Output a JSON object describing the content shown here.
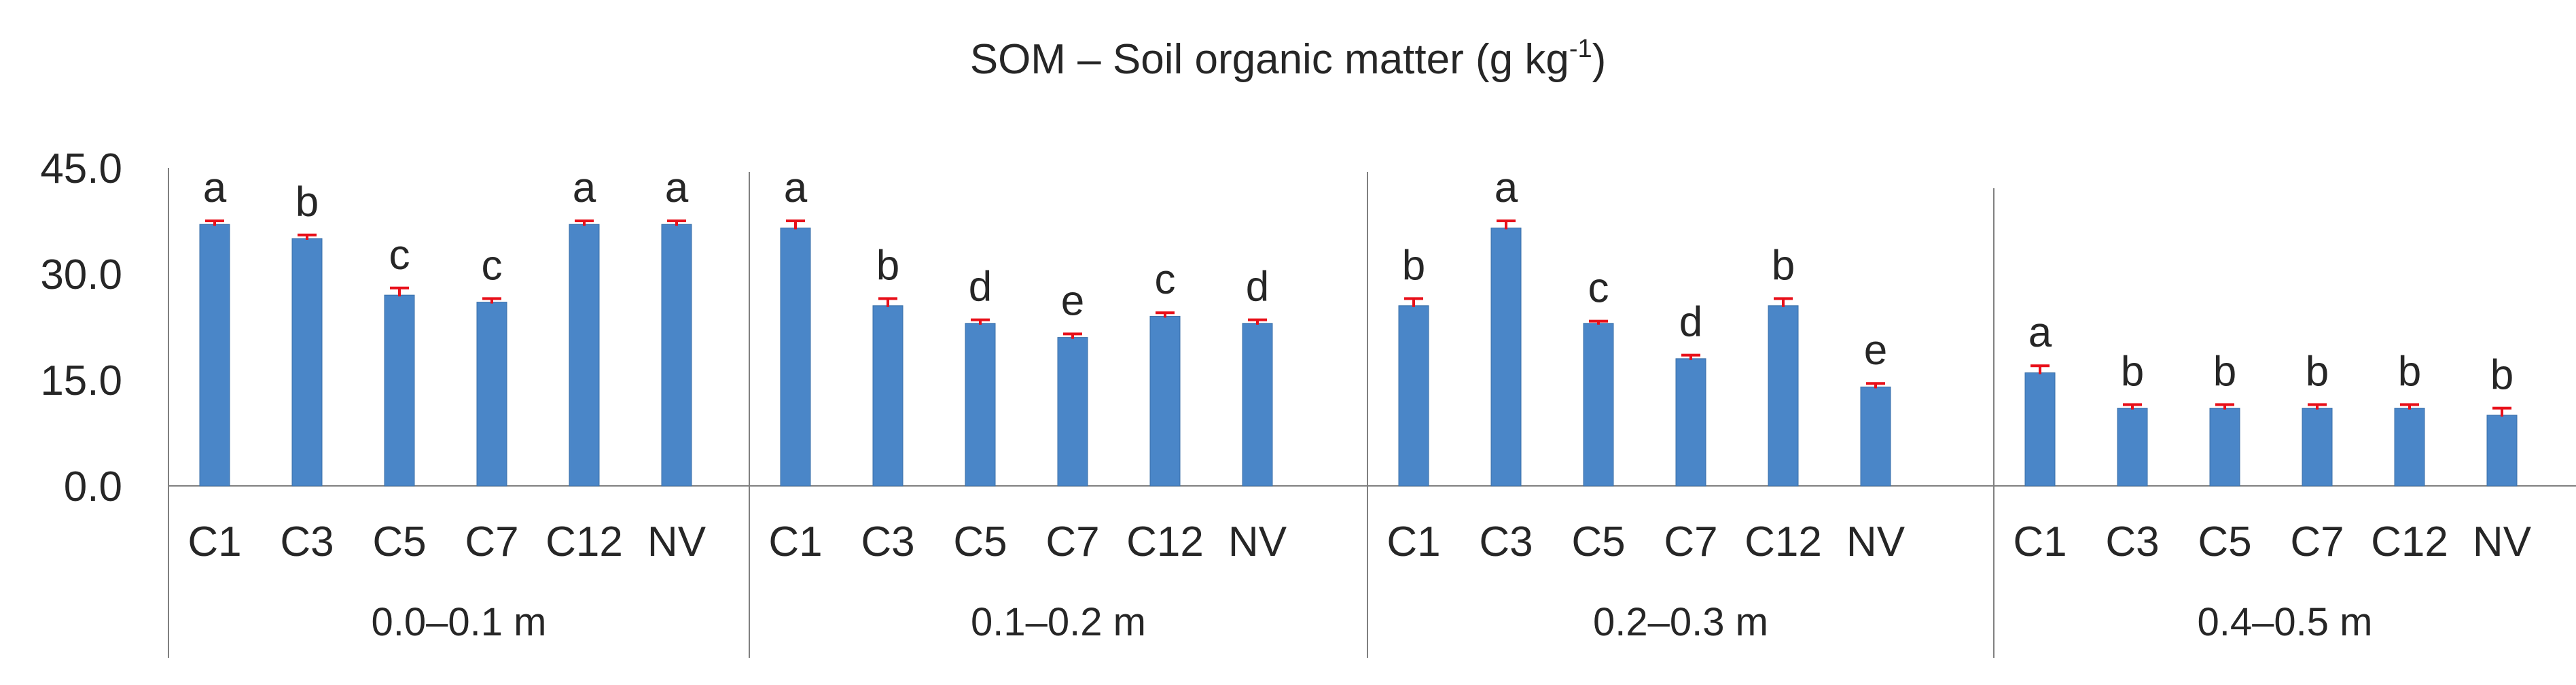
{
  "chart_data": {
    "type": "bar",
    "title": "SOM – Soil organic matter (g kg",
    "title_superscript": "-1",
    "title_close": ")",
    "y_ticks": [
      "0.0",
      "15.0",
      "30.0",
      "45.0"
    ],
    "ylim": [
      0,
      45
    ],
    "grid": false,
    "colors": {
      "bar": "#4a86c8",
      "error_bar": "#e8101a"
    },
    "categories": [
      "C1",
      "C3",
      "C5",
      "C7",
      "C12",
      "NV"
    ],
    "panels": [
      {
        "depth": "0.0–0.1 m",
        "values": [
          37.0,
          35.0,
          27.0,
          26.0,
          37.0,
          37.0
        ],
        "errors": [
          0.5,
          0.5,
          1.0,
          0.5,
          0.5,
          0.5
        ],
        "letters": [
          "a",
          "b",
          "c",
          "c",
          "a",
          "a"
        ]
      },
      {
        "depth": "0.1–0.2 m",
        "values": [
          36.5,
          25.5,
          23.0,
          21.0,
          24.0,
          23.0
        ],
        "errors": [
          1.0,
          1.0,
          0.5,
          0.5,
          0.5,
          0.5
        ],
        "letters": [
          "a",
          "b",
          "d",
          "e",
          "c",
          "d"
        ]
      },
      {
        "depth": "0.2–0.3 m",
        "values": [
          25.5,
          36.5,
          23.0,
          18.0,
          25.5,
          14.0
        ],
        "errors": [
          1.0,
          1.0,
          0.3,
          0.5,
          1.0,
          0.5
        ],
        "letters": [
          "b",
          "a",
          "c",
          "d",
          "b",
          "e"
        ]
      },
      {
        "depth": "0.4–0.5 m",
        "values": [
          16.0,
          11.0,
          11.0,
          11.0,
          11.0,
          10.0
        ],
        "errors": [
          1.0,
          0.5,
          0.5,
          0.5,
          0.5,
          1.0
        ],
        "letters": [
          "a",
          "b",
          "b",
          "b",
          "b",
          "b"
        ]
      }
    ]
  }
}
